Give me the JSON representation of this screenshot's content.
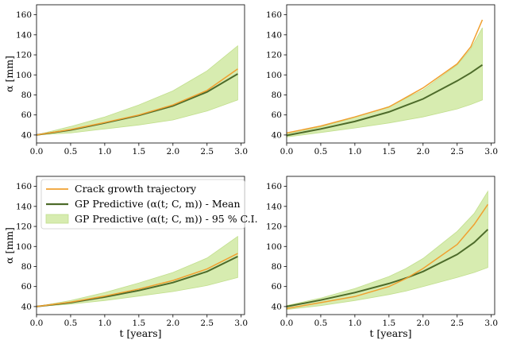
{
  "colors": {
    "trajectory": "#f0a030",
    "mean": "#4d6b2a",
    "ci_fill": "#d7ecb0",
    "ci_edge": "#c2df8e"
  },
  "legend": {
    "trajectory_label": "Crack growth trajectory",
    "mean_label": "GP Predictive (α(t; C, m)) - Mean",
    "ci_label": "GP Predictive (α(t; C, m)) - 95 % C.I."
  },
  "xlabel": "t [years]",
  "ylabel": "α [mm]",
  "chart_data": [
    {
      "type": "line",
      "panel": "top-left",
      "xlim": [
        0,
        3.05
      ],
      "ylim": [
        32,
        170
      ],
      "xticks": [
        "0.0",
        "0.5",
        "1.0",
        "1.5",
        "2.0",
        "2.5",
        "3.0"
      ],
      "yticks": [
        "40",
        "60",
        "80",
        "100",
        "120",
        "140",
        "160"
      ],
      "x": [
        0,
        0.5,
        1.0,
        1.5,
        2.0,
        2.5,
        2.95
      ],
      "series": [
        {
          "name": "Crack growth trajectory",
          "values": [
            40,
            45.5,
            52.5,
            60,
            70,
            84.5,
            106
          ]
        },
        {
          "name": "GP Predictive - Mean",
          "values": [
            40,
            45,
            52,
            59.5,
            69,
            83,
            101
          ]
        },
        {
          "name": "95% C.I. upper",
          "values": [
            40,
            48.5,
            58,
            70,
            84,
            104,
            129
          ]
        },
        {
          "name": "95% C.I. lower",
          "values": [
            40,
            42,
            46,
            50,
            55,
            64,
            75
          ]
        }
      ]
    },
    {
      "type": "line",
      "panel": "top-right",
      "xlim": [
        0,
        3.05
      ],
      "ylim": [
        32,
        170
      ],
      "xticks": [
        "0.0",
        "0.5",
        "1.0",
        "1.5",
        "2.0",
        "2.5",
        "3.0"
      ],
      "yticks": [
        "40",
        "60",
        "80",
        "100",
        "120",
        "140",
        "160"
      ],
      "x": [
        0,
        0.5,
        1.0,
        1.5,
        2.0,
        2.5,
        2.7,
        2.87
      ],
      "series": [
        {
          "name": "Crack growth trajectory",
          "values": [
            42,
            49,
            58,
            68,
            87,
            111,
            128,
            155
          ]
        },
        {
          "name": "GP Predictive - Mean",
          "values": [
            39.5,
            46,
            53.5,
            63,
            76,
            94,
            102,
            110
          ]
        },
        {
          "name": "95% C.I. upper",
          "values": [
            41,
            48,
            57.5,
            68.5,
            85,
            110,
            126,
            147
          ]
        },
        {
          "name": "95% C.I. lower",
          "values": [
            38,
            42.5,
            47,
            52,
            58,
            66,
            70.5,
            75
          ]
        }
      ]
    },
    {
      "type": "line",
      "panel": "bottom-left",
      "xlim": [
        0,
        3.05
      ],
      "ylim": [
        32,
        170
      ],
      "xticks": [
        "0.0",
        "0.5",
        "1.0",
        "1.5",
        "2.0",
        "2.5",
        "3.0"
      ],
      "yticks": [
        "40",
        "60",
        "80",
        "100",
        "120",
        "140",
        "160"
      ],
      "x": [
        0,
        0.5,
        1.0,
        1.5,
        2.0,
        2.5,
        2.95
      ],
      "series": [
        {
          "name": "Crack growth trajectory",
          "values": [
            40,
            44.5,
            50.5,
            57.5,
            66,
            77.5,
            93
          ]
        },
        {
          "name": "GP Predictive - Mean",
          "values": [
            40,
            44,
            49.5,
            56,
            64,
            75,
            90
          ]
        },
        {
          "name": "95% C.I. upper",
          "values": [
            40,
            46,
            54,
            63.5,
            74,
            88.5,
            110
          ]
        },
        {
          "name": "95% C.I. lower",
          "values": [
            40,
            42.5,
            46,
            50.5,
            55,
            61,
            69
          ]
        }
      ]
    },
    {
      "type": "line",
      "panel": "bottom-right",
      "xlim": [
        0,
        3.05
      ],
      "ylim": [
        32,
        170
      ],
      "xticks": [
        "0.0",
        "0.5",
        "1.0",
        "1.5",
        "2.0",
        "2.5",
        "3.0"
      ],
      "yticks": [
        "40",
        "60",
        "80",
        "100",
        "120",
        "140",
        "160"
      ],
      "x": [
        0,
        0.5,
        1.0,
        1.5,
        1.75,
        2.0,
        2.5,
        2.75,
        2.95
      ],
      "series": [
        {
          "name": "Crack growth trajectory",
          "values": [
            38,
            44,
            50,
            60,
            68,
            78,
            102,
            122,
            142
          ]
        },
        {
          "name": "GP Predictive - Mean",
          "values": [
            40,
            46.5,
            54,
            63,
            68.5,
            75,
            92,
            104,
            117
          ]
        },
        {
          "name": "95% C.I. upper",
          "values": [
            41,
            48.5,
            58,
            70,
            78,
            88,
            115,
            133,
            155
          ]
        },
        {
          "name": "95% C.I. lower",
          "values": [
            37,
            41,
            46,
            52,
            55.5,
            60,
            69,
            74,
            79
          ]
        }
      ]
    }
  ]
}
